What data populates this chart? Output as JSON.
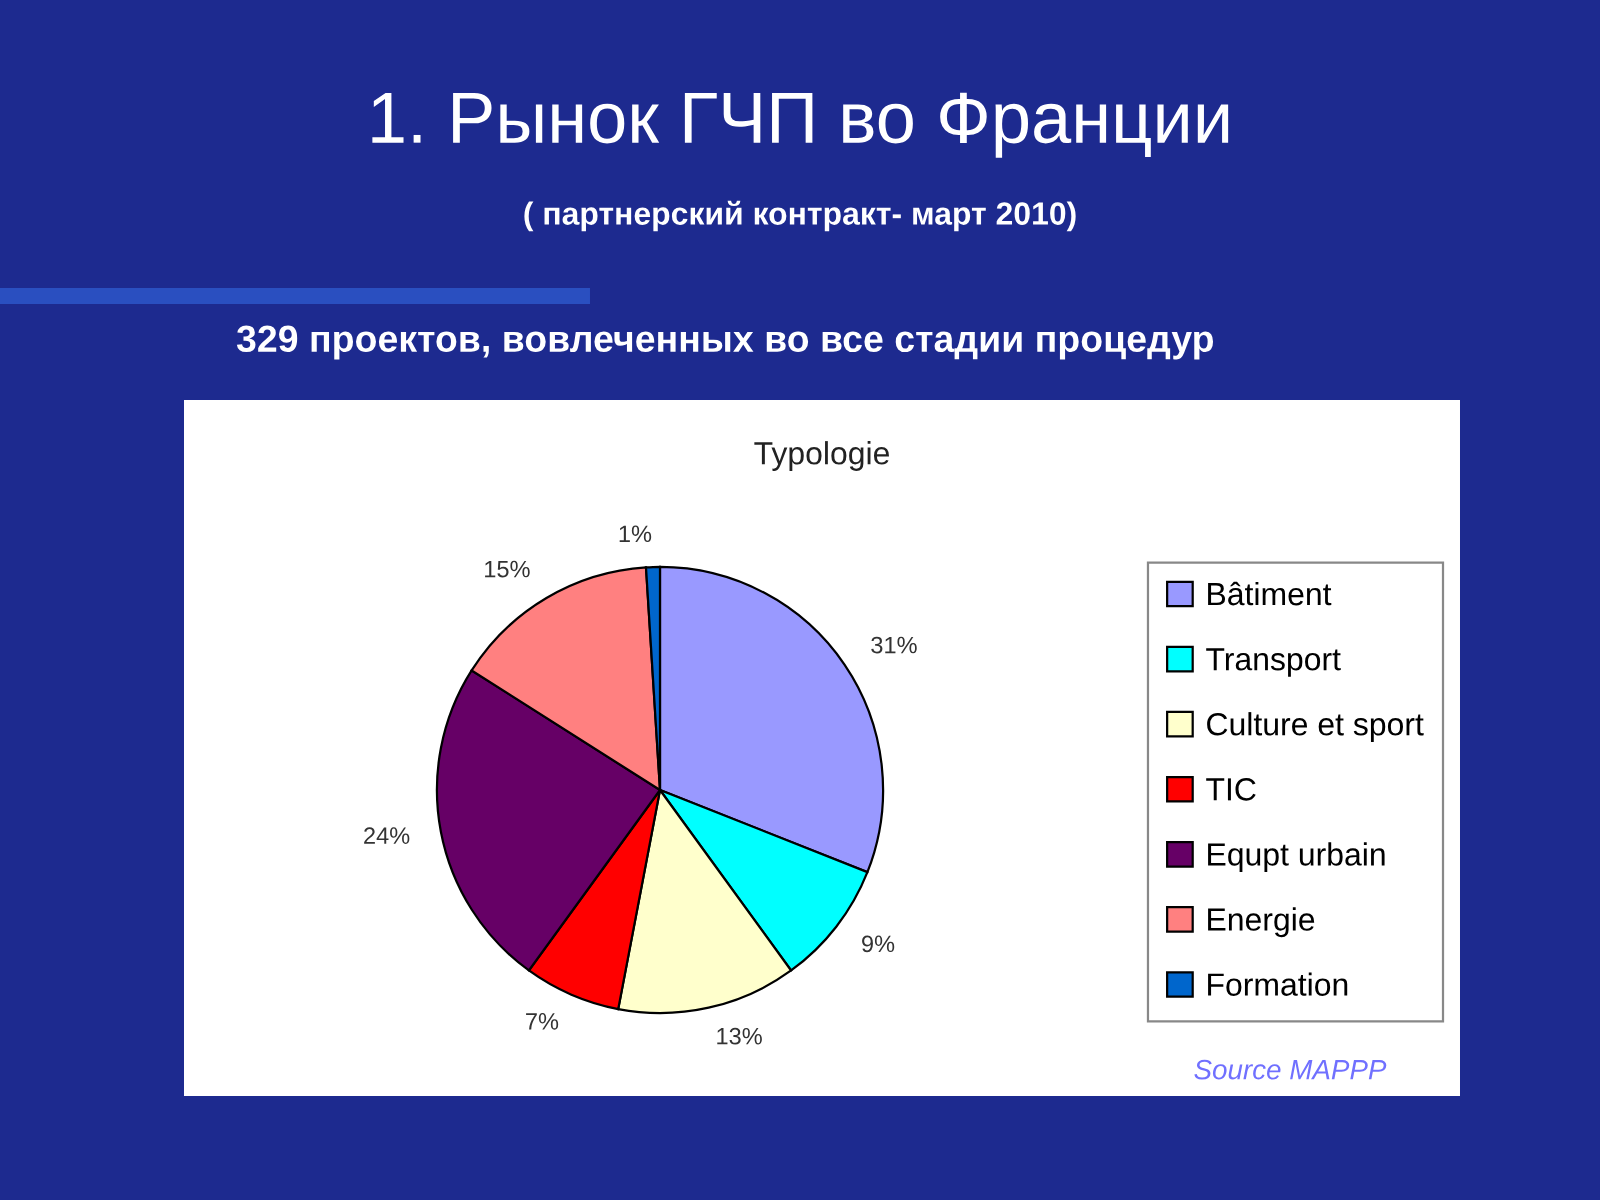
{
  "chart_data": {
    "type": "pie",
    "title": "1. Рынок ГЧП во Франции",
    "subtitle": "( партнерский контракт- март 2010)",
    "categories": [
      "Bâtiment",
      "Transport",
      "Culture et sport",
      "TIC",
      "Equpt urbain",
      "Energie",
      "Formation"
    ],
    "values": [
      31,
      9,
      13,
      7,
      24,
      15,
      1
    ],
    "colors": [
      "#9999ff",
      "#00ffff",
      "#ffffcc",
      "#ff0000",
      "#660066",
      "#ff8080",
      "#0066cc"
    ],
    "value_labels": [
      "31%",
      "9%",
      "13%",
      "7%",
      "24%",
      "15%",
      "1%"
    ],
    "legend": "right",
    "annotations": [
      "329 проектов, вовлеченных во все стадии процедур",
      "Typologie",
      "Source MAPPP"
    ]
  }
}
